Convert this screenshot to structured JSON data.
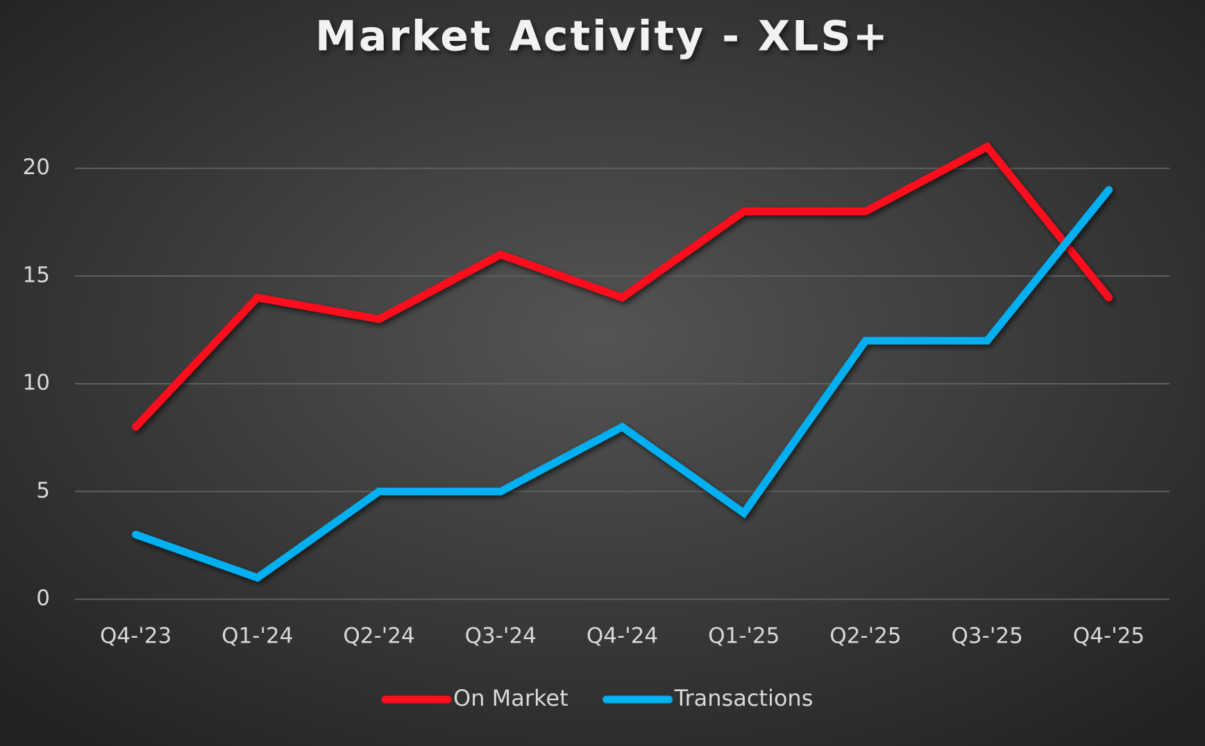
{
  "chart_data": {
    "type": "line",
    "title": "Market Activity - XLS+",
    "categories": [
      "Q4-'23",
      "Q1-'24",
      "Q2-'24",
      "Q3-'24",
      "Q4-'24",
      "Q1-'25",
      "Q2-'25",
      "Q3-'25",
      "Q4-'25"
    ],
    "series": [
      {
        "name": "On Market",
        "color": "#ff0d1f",
        "values": [
          8,
          14,
          13,
          16,
          14,
          18,
          18,
          21,
          14
        ]
      },
      {
        "name": "Transactions",
        "color": "#00b0f0",
        "values": [
          3,
          1,
          5,
          5,
          8,
          4,
          12,
          12,
          19
        ]
      }
    ],
    "ylim": [
      0,
      22
    ],
    "yticks": [
      0,
      5,
      10,
      15,
      20
    ],
    "grid": true,
    "legend": "bottom"
  }
}
